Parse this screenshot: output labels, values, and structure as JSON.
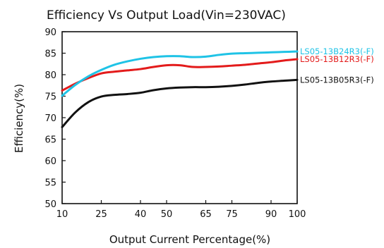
{
  "chart_data": {
    "type": "line",
    "title": "Efficiency Vs Output Load(Vin=230VAC)",
    "xlabel": "Output Current Percentage(%)",
    "ylabel": "Efficiency(%)",
    "xlim": [
      10,
      100
    ],
    "ylim": [
      50,
      90
    ],
    "x_ticks": [
      "10",
      "25",
      "40",
      "50",
      "65",
      "75",
      "90",
      "100"
    ],
    "x_tick_values": [
      10,
      25,
      40,
      50,
      65,
      75,
      90,
      100
    ],
    "y_ticks": [
      "50",
      "55",
      "60",
      "65",
      "70",
      "75",
      "80",
      "85",
      "90"
    ],
    "y_tick_values": [
      50,
      55,
      60,
      65,
      70,
      75,
      80,
      85,
      90
    ],
    "grid": false,
    "legend_placement": "right, at line ends",
    "series": [
      {
        "name": "LS05-13B24R3(-F)",
        "color": "#1fc3e6",
        "x": [
          10,
          15,
          20,
          25,
          30,
          35,
          40,
          45,
          50,
          55,
          60,
          65,
          70,
          75,
          80,
          85,
          90,
          95,
          100
        ],
        "y": [
          75.1,
          77.6,
          79.6,
          81.1,
          82.3,
          83.1,
          83.7,
          84.1,
          84.3,
          84.3,
          84.1,
          84.2,
          84.6,
          84.9,
          85.0,
          85.1,
          85.2,
          85.3,
          85.4
        ]
      },
      {
        "name": "LS05-13B12R3(-F)",
        "color": "#e31b1b",
        "x": [
          10,
          15,
          20,
          25,
          30,
          35,
          40,
          45,
          50,
          55,
          60,
          65,
          70,
          75,
          80,
          85,
          90,
          95,
          100
        ],
        "y": [
          76.3,
          77.9,
          79.2,
          80.3,
          80.7,
          81.0,
          81.3,
          81.8,
          82.2,
          82.2,
          81.8,
          81.8,
          81.9,
          82.1,
          82.3,
          82.6,
          82.9,
          83.3,
          83.6
        ]
      },
      {
        "name": "LS05-13B05R3(-F)",
        "color": "#111111",
        "x": [
          10,
          15,
          20,
          25,
          30,
          35,
          40,
          45,
          50,
          55,
          60,
          65,
          70,
          75,
          80,
          85,
          90,
          95,
          100
        ],
        "y": [
          67.8,
          71.2,
          73.6,
          74.9,
          75.3,
          75.5,
          75.8,
          76.4,
          76.8,
          77.0,
          77.1,
          77.1,
          77.2,
          77.4,
          77.7,
          78.1,
          78.4,
          78.6,
          78.8
        ]
      }
    ]
  }
}
